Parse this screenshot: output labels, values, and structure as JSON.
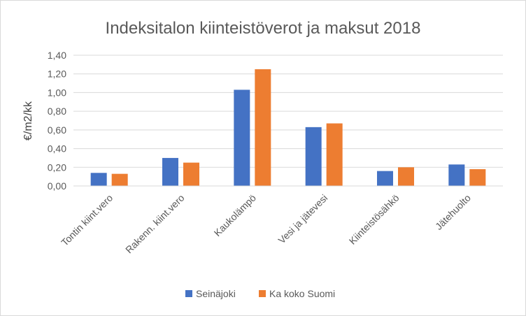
{
  "chart_data": {
    "type": "bar",
    "title": "Indeksitalon kiinteistöverot ja maksut 2018",
    "xlabel": "",
    "ylabel": "€/m2/kk",
    "ylim": [
      0,
      1.4
    ],
    "yticks": [
      "0,00",
      "0,20",
      "0,40",
      "0,60",
      "0,80",
      "1,00",
      "1,20",
      "1,40"
    ],
    "categories": [
      "Tontin kiint.vero",
      "Rakenn. kiint.vero",
      "Kaukolämpö",
      "Vesi ja jätevesi",
      "Kiinteistösähkö",
      "Jätehuolto"
    ],
    "series": [
      {
        "name": "Seinäjoki",
        "color": "#4472c4",
        "values": [
          0.14,
          0.3,
          1.03,
          0.63,
          0.16,
          0.23
        ]
      },
      {
        "name": "Ka koko Suomi",
        "color": "#ed7d31",
        "values": [
          0.13,
          0.25,
          1.25,
          0.67,
          0.2,
          0.18
        ]
      }
    ],
    "grid": true,
    "legend": "bottom"
  }
}
